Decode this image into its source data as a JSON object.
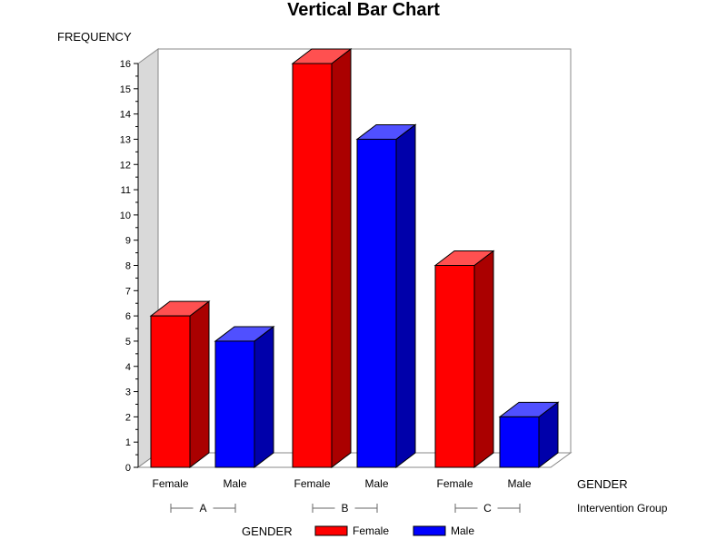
{
  "chart_data": {
    "type": "bar",
    "title": "Vertical Bar Chart",
    "ylabel": "FREQUENCY",
    "ylim": [
      0,
      16
    ],
    "yticks": [
      0,
      1,
      2,
      3,
      4,
      5,
      6,
      7,
      8,
      9,
      10,
      11,
      12,
      13,
      14,
      15,
      16
    ],
    "x_inner_label": "GENDER",
    "x_outer_label": "Intervention Group",
    "groups": [
      {
        "name": "A",
        "bars": [
          {
            "gender": "Female",
            "value": 6
          },
          {
            "gender": "Male",
            "value": 5
          }
        ]
      },
      {
        "name": "B",
        "bars": [
          {
            "gender": "Female",
            "value": 16
          },
          {
            "gender": "Male",
            "value": 13
          }
        ]
      },
      {
        "name": "C",
        "bars": [
          {
            "gender": "Female",
            "value": 8
          },
          {
            "gender": "Male",
            "value": 2
          }
        ]
      }
    ],
    "legend": {
      "title": "GENDER",
      "entries": [
        {
          "label": "Female",
          "color": "#ff0000"
        },
        {
          "label": "Male",
          "color": "#0000ff"
        }
      ]
    },
    "series_colors": {
      "Female": {
        "front": "#ff0000",
        "top": "#ff5050",
        "side": "#aa0000"
      },
      "Male": {
        "front": "#0000ff",
        "top": "#5050ff",
        "side": "#0000aa"
      }
    }
  }
}
